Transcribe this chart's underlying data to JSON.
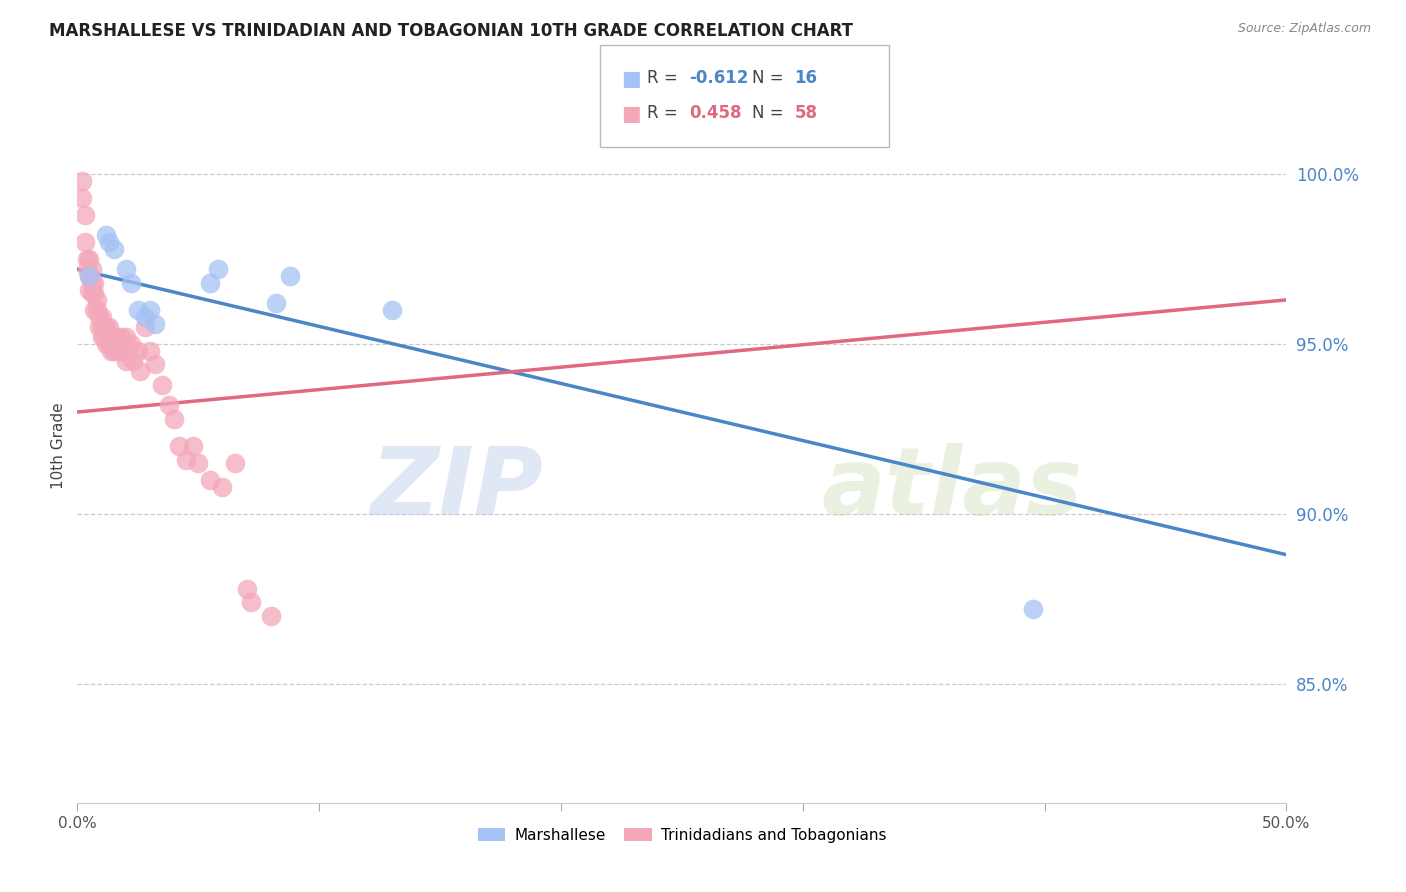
{
  "title": "MARSHALLESE VS TRINIDADIAN AND TOBAGONIAN 10TH GRADE CORRELATION CHART",
  "source": "Source: ZipAtlas.com",
  "ylabel": "10th Grade",
  "yticks_labels": [
    "100.0%",
    "95.0%",
    "90.0%",
    "85.0%"
  ],
  "yticks_values": [
    1.0,
    0.95,
    0.9,
    0.85
  ],
  "xlim": [
    0.0,
    0.5
  ],
  "ylim": [
    0.815,
    1.025
  ],
  "watermark_zip": "ZIP",
  "watermark_atlas": "atlas",
  "legend_blue_r": "-0.612",
  "legend_blue_n": "16",
  "legend_pink_r": "0.458",
  "legend_pink_n": "58",
  "blue_color": "#a4c2f4",
  "pink_color": "#f4a7b9",
  "blue_line_color": "#4a86c8",
  "pink_line_color": "#e06880",
  "blue_line_x0": 0.0,
  "blue_line_y0": 0.972,
  "blue_line_x1": 0.5,
  "blue_line_y1": 0.888,
  "pink_line_x0": 0.0,
  "pink_line_y0": 0.93,
  "pink_line_x1": 0.5,
  "pink_line_y1": 0.963,
  "blue_scatter": [
    [
      0.005,
      0.97
    ],
    [
      0.012,
      0.982
    ],
    [
      0.013,
      0.98
    ],
    [
      0.015,
      0.978
    ],
    [
      0.02,
      0.972
    ],
    [
      0.022,
      0.968
    ],
    [
      0.025,
      0.96
    ],
    [
      0.028,
      0.958
    ],
    [
      0.03,
      0.96
    ],
    [
      0.032,
      0.956
    ],
    [
      0.055,
      0.968
    ],
    [
      0.058,
      0.972
    ],
    [
      0.082,
      0.962
    ],
    [
      0.088,
      0.97
    ],
    [
      0.13,
      0.96
    ],
    [
      0.395,
      0.872
    ]
  ],
  "pink_scatter": [
    [
      0.002,
      0.998
    ],
    [
      0.002,
      0.993
    ],
    [
      0.003,
      0.988
    ],
    [
      0.003,
      0.98
    ],
    [
      0.004,
      0.975
    ],
    [
      0.004,
      0.972
    ],
    [
      0.005,
      0.975
    ],
    [
      0.005,
      0.97
    ],
    [
      0.005,
      0.966
    ],
    [
      0.006,
      0.972
    ],
    [
      0.006,
      0.968
    ],
    [
      0.006,
      0.965
    ],
    [
      0.007,
      0.968
    ],
    [
      0.007,
      0.965
    ],
    [
      0.007,
      0.96
    ],
    [
      0.008,
      0.963
    ],
    [
      0.008,
      0.96
    ],
    [
      0.009,
      0.958
    ],
    [
      0.009,
      0.955
    ],
    [
      0.01,
      0.958
    ],
    [
      0.01,
      0.955
    ],
    [
      0.01,
      0.952
    ],
    [
      0.011,
      0.955
    ],
    [
      0.011,
      0.952
    ],
    [
      0.012,
      0.955
    ],
    [
      0.012,
      0.95
    ],
    [
      0.013,
      0.955
    ],
    [
      0.013,
      0.95
    ],
    [
      0.014,
      0.952
    ],
    [
      0.014,
      0.948
    ],
    [
      0.015,
      0.952
    ],
    [
      0.015,
      0.948
    ],
    [
      0.016,
      0.952
    ],
    [
      0.017,
      0.948
    ],
    [
      0.018,
      0.952
    ],
    [
      0.019,
      0.948
    ],
    [
      0.02,
      0.952
    ],
    [
      0.02,
      0.945
    ],
    [
      0.022,
      0.95
    ],
    [
      0.023,
      0.945
    ],
    [
      0.025,
      0.948
    ],
    [
      0.026,
      0.942
    ],
    [
      0.028,
      0.955
    ],
    [
      0.03,
      0.948
    ],
    [
      0.032,
      0.944
    ],
    [
      0.035,
      0.938
    ],
    [
      0.038,
      0.932
    ],
    [
      0.04,
      0.928
    ],
    [
      0.042,
      0.92
    ],
    [
      0.045,
      0.916
    ],
    [
      0.048,
      0.92
    ],
    [
      0.05,
      0.915
    ],
    [
      0.055,
      0.91
    ],
    [
      0.06,
      0.908
    ],
    [
      0.065,
      0.915
    ],
    [
      0.07,
      0.878
    ],
    [
      0.072,
      0.874
    ],
    [
      0.08,
      0.87
    ]
  ]
}
